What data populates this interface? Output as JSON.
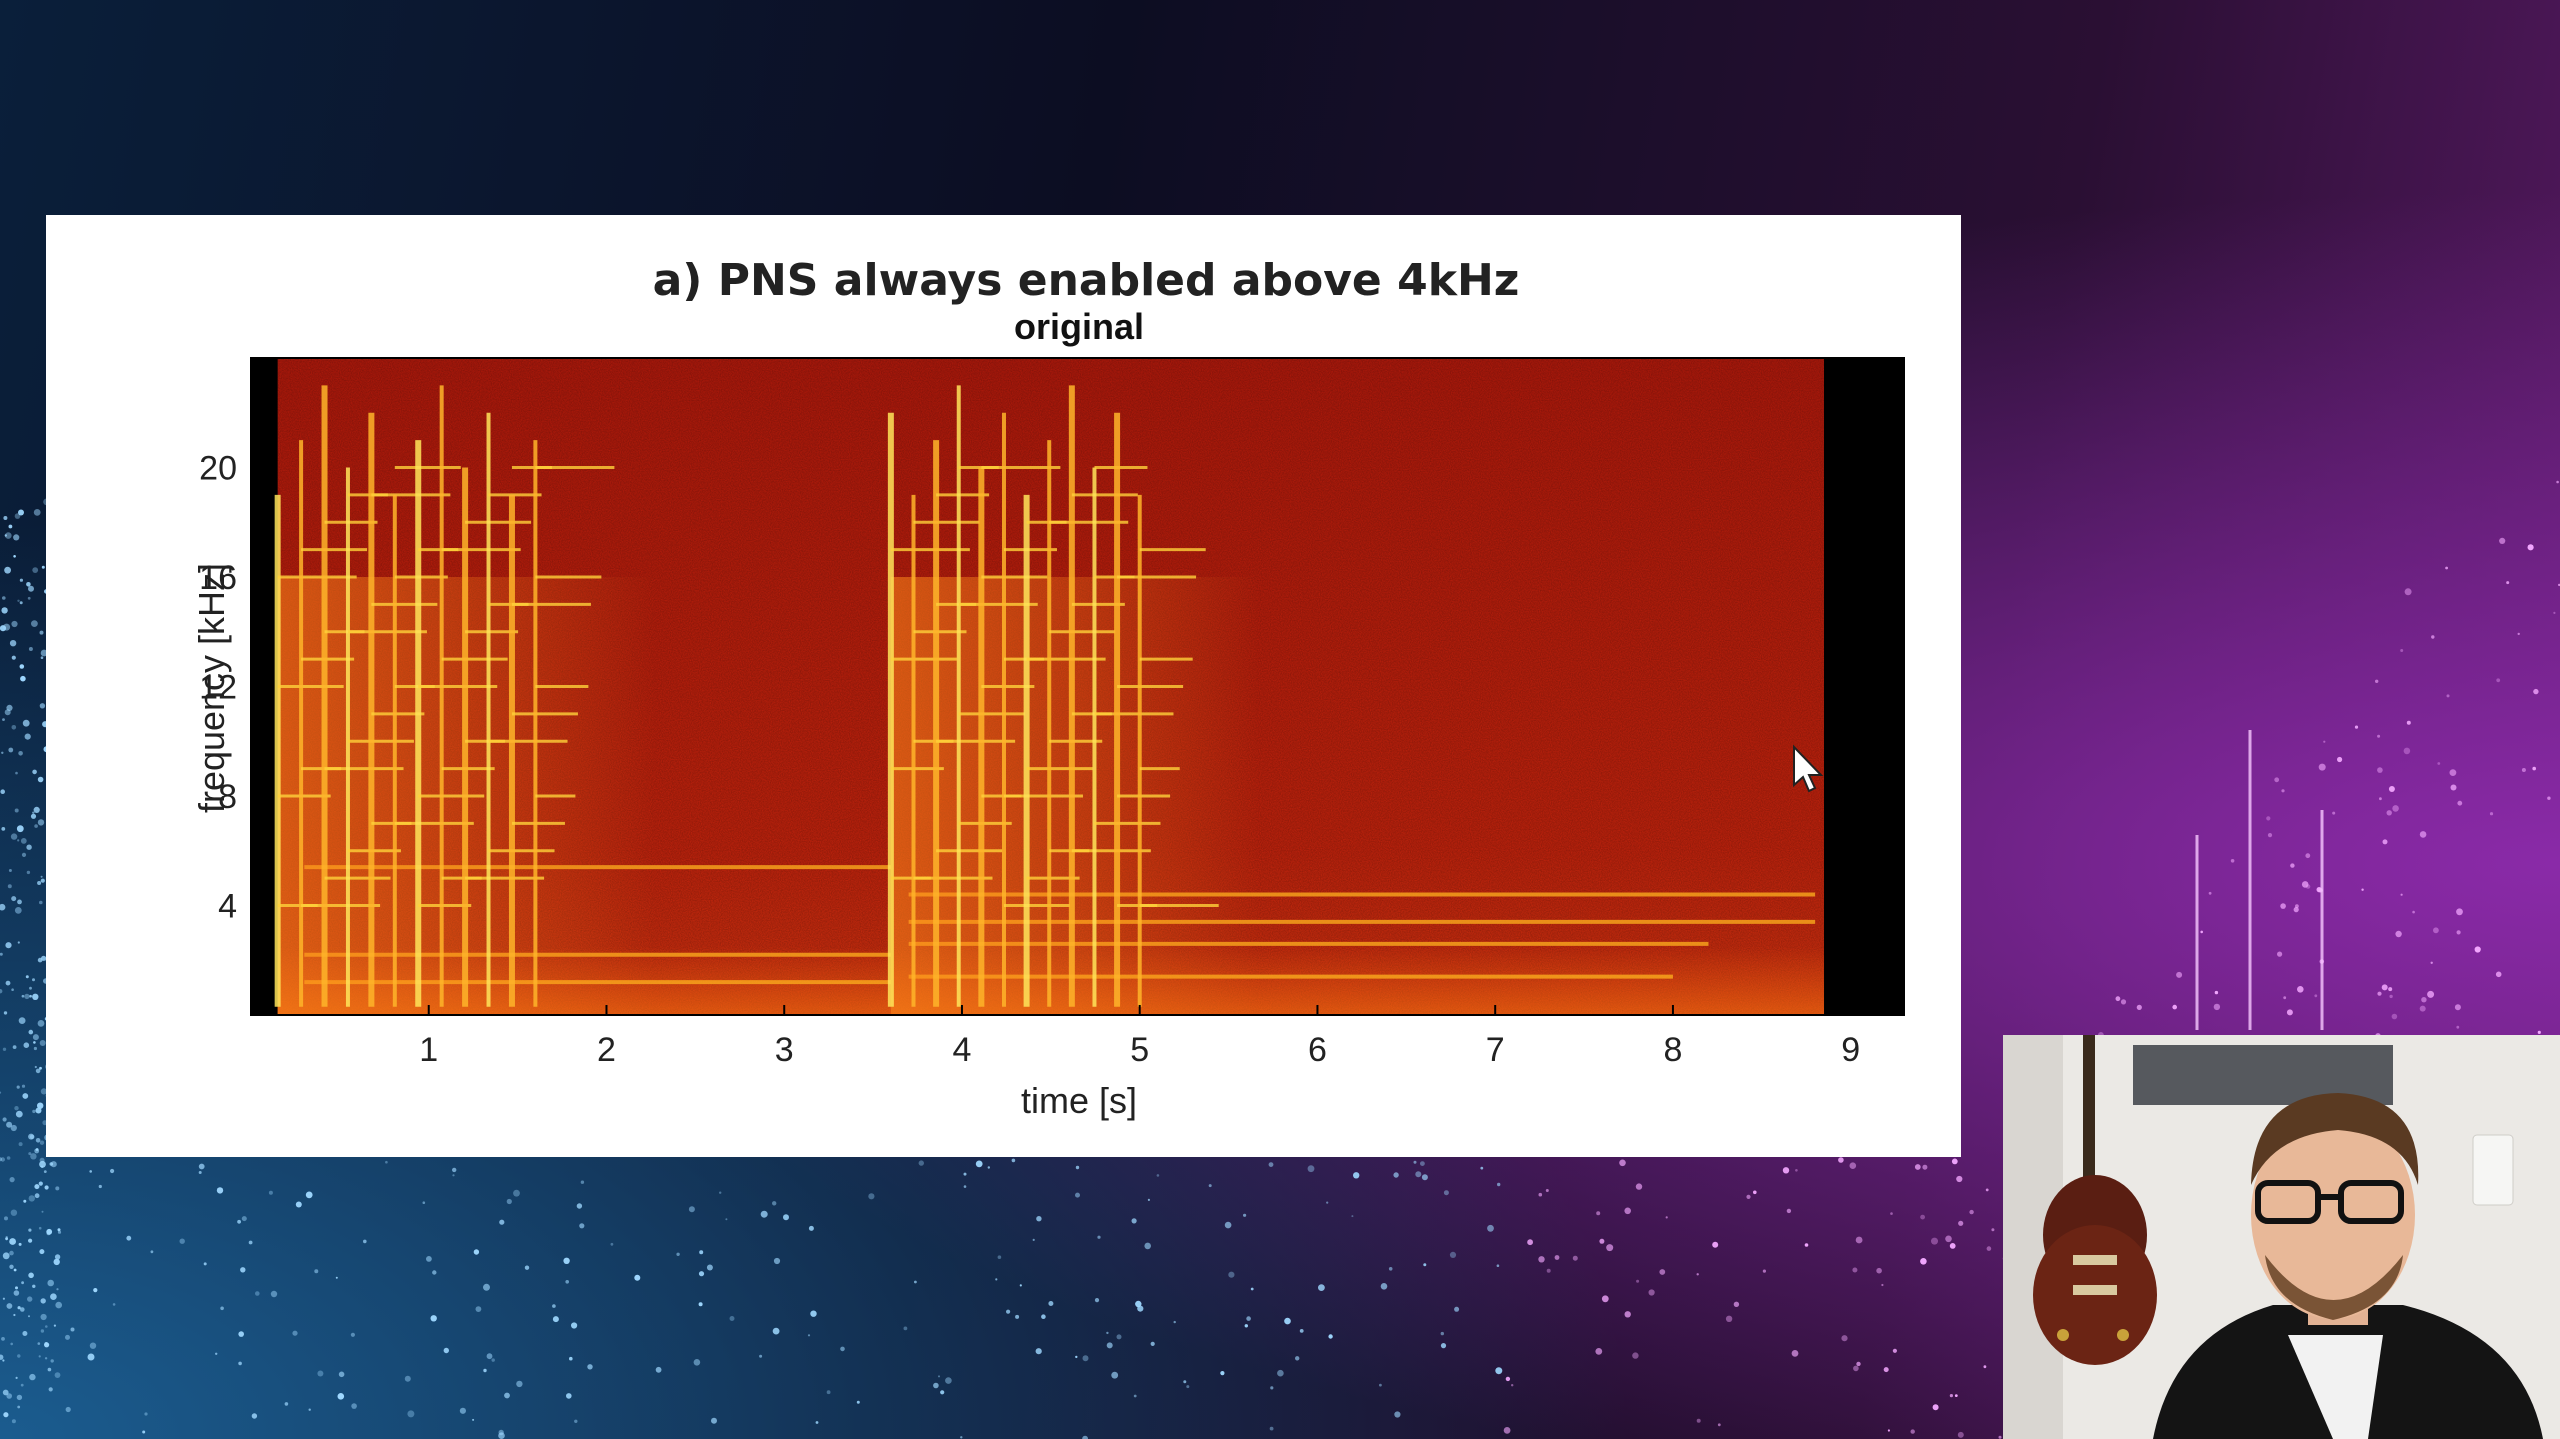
{
  "slide": {
    "title": "a) PNS always enabled above 4kHz"
  },
  "chart_data": {
    "type": "heatmap",
    "title": "original",
    "xlabel": "time [s]",
    "ylabel": "frequency [kHz]",
    "xlim": [
      0,
      9.3
    ],
    "ylim": [
      0,
      24
    ],
    "xticks": [
      1,
      2,
      3,
      4,
      5,
      6,
      7,
      8,
      9
    ],
    "yticks": [
      4,
      8,
      12,
      16,
      20
    ],
    "colormap": "black-red-yellow",
    "signal_end_s": 8.85,
    "onset_groups": [
      {
        "start_s": 0.15,
        "end_s": 1.6
      },
      {
        "start_s": 3.6,
        "end_s": 5.0
      }
    ],
    "colors": {
      "low": "#000000",
      "mid": "#c8200c",
      "high": "#ffe34a"
    }
  },
  "cursor": {
    "icon": "mouse-pointer-icon"
  },
  "webcam": {
    "icon": "presenter-webcam"
  }
}
